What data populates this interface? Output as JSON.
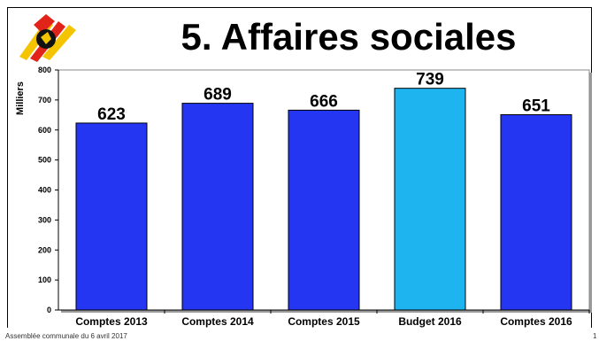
{
  "slide": {
    "title": "5. Affaires sociales",
    "footer": "Assemblée communale du 6 avril 2017",
    "page_number": "1"
  },
  "colors": {
    "bar_actual": "#2436F2",
    "bar_budget": "#1EB4F0",
    "plot_bg": "#ffffff"
  },
  "chart_data": {
    "type": "bar",
    "title": "5. Affaires sociales",
    "xlabel": "",
    "ylabel": "Milliers",
    "categories": [
      "Comptes 2013",
      "Comptes 2014",
      "Comptes 2015",
      "Budget 2016",
      "Comptes 2016"
    ],
    "values": [
      623,
      689,
      666,
      739,
      651
    ],
    "data_labels": [
      "623",
      "689",
      "666",
      "739",
      "651"
    ],
    "bar_colors": [
      "#2436F2",
      "#2436F2",
      "#2436F2",
      "#1EB4F0",
      "#2436F2"
    ],
    "ylim": [
      0,
      800
    ],
    "yticks": [
      0,
      100,
      200,
      300,
      400,
      500,
      600,
      700,
      800
    ],
    "grid": false,
    "legend": "none"
  }
}
